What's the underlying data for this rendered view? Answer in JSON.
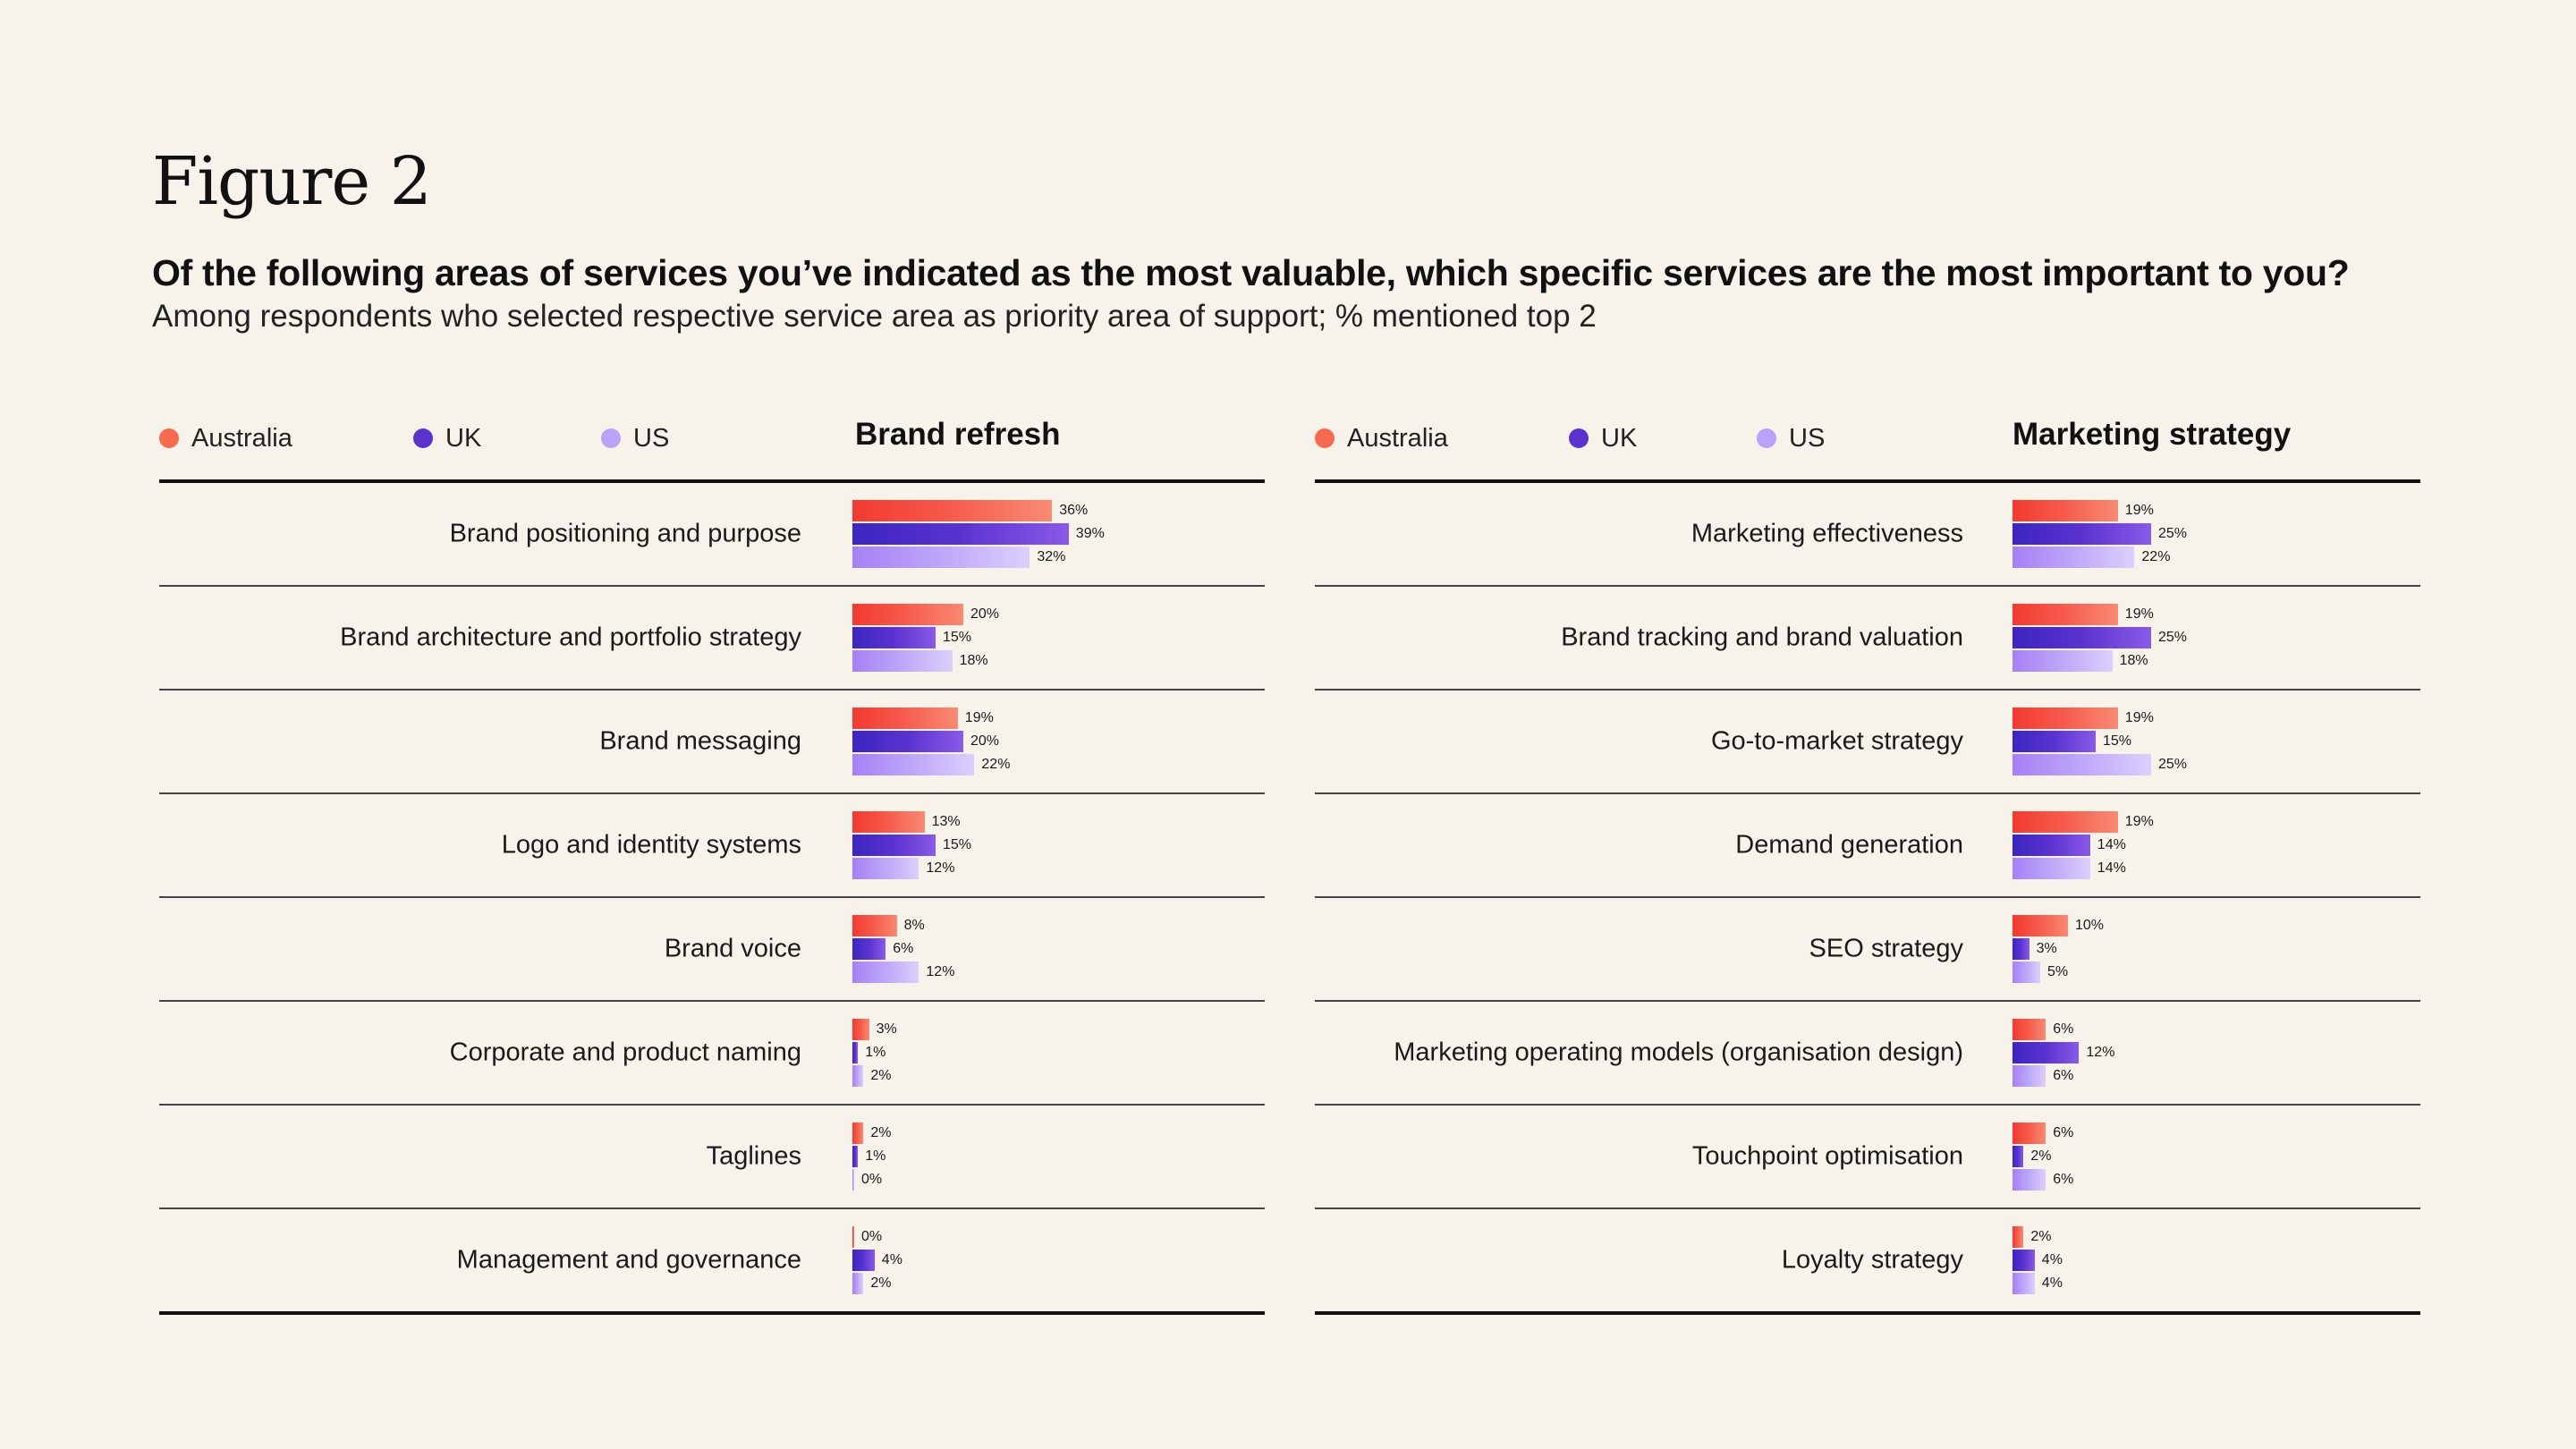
{
  "figure_title": "Figure 2",
  "question": "Of the following areas of services you’ve indicated as the most valuable, which specific services are the most important to you?",
  "subtitle": "Among respondents who selected respective service area as priority area of support; % mentioned top 2",
  "legend": [
    {
      "name": "Australia",
      "color": "#f76a50"
    },
    {
      "name": "UK",
      "color": "#5a33cf"
    },
    {
      "name": "US",
      "color": "#b9a2f8"
    }
  ],
  "chart_data": [
    {
      "type": "bar",
      "orientation": "horizontal",
      "title": "Brand refresh",
      "categories": [
        "Brand positioning and purpose",
        "Brand architecture and portfolio strategy",
        "Brand messaging",
        "Logo and identity systems",
        "Brand voice",
        "Corporate and product naming",
        "Taglines",
        "Management and governance"
      ],
      "series": [
        {
          "name": "Australia",
          "values": [
            36,
            20,
            19,
            13,
            8,
            3,
            2,
            0
          ]
        },
        {
          "name": "UK",
          "values": [
            39,
            15,
            20,
            15,
            6,
            1,
            1,
            4
          ]
        },
        {
          "name": "US",
          "values": [
            32,
            18,
            22,
            12,
            12,
            2,
            0,
            2
          ]
        }
      ],
      "unit": "%"
    },
    {
      "type": "bar",
      "orientation": "horizontal",
      "title": "Marketing strategy",
      "categories": [
        "Marketing effectiveness",
        "Brand tracking and brand valuation",
        "Go-to-market strategy",
        "Demand generation",
        "SEO strategy",
        "Marketing operating models (organisation design)",
        "Touchpoint optimisation",
        "Loyalty strategy"
      ],
      "series": [
        {
          "name": "Australia",
          "values": [
            19,
            19,
            19,
            19,
            10,
            6,
            6,
            2
          ]
        },
        {
          "name": "UK",
          "values": [
            25,
            25,
            15,
            14,
            3,
            12,
            2,
            4
          ]
        },
        {
          "name": "US",
          "values": [
            22,
            18,
            25,
            14,
            5,
            6,
            6,
            4
          ]
        }
      ],
      "unit": "%"
    }
  ]
}
